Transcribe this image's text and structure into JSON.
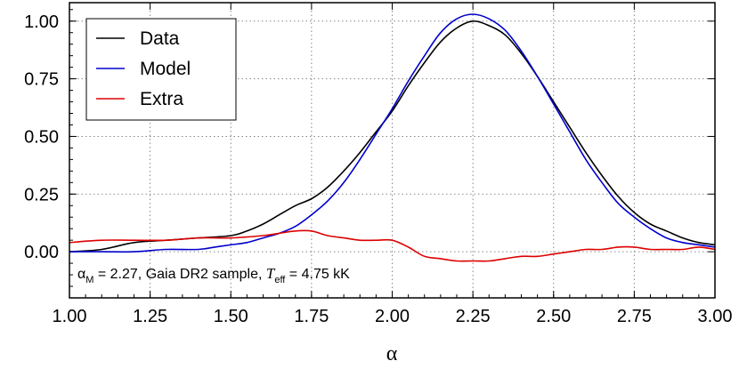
{
  "chart_data": {
    "type": "line",
    "xlabel": "α",
    "ylabel": "",
    "xlim": [
      1.0,
      3.0
    ],
    "ylim": [
      -0.2,
      1.08
    ],
    "x_ticks": [
      "1.00",
      "1.25",
      "1.50",
      "1.75",
      "2.00",
      "2.25",
      "2.50",
      "2.75",
      "3.00"
    ],
    "y_ticks": [
      "1.00",
      "0.75",
      "0.50",
      "0.25",
      "0.00"
    ],
    "grid": true,
    "legend_position": "top-left",
    "annotation": {
      "alpha": "α",
      "alpha_sub": "M",
      "value_text": " = 2.27, Gaia DR2 sample, ",
      "t": "T",
      "t_sub": "eff",
      "tail": " = 4.75 kK"
    },
    "series": [
      {
        "name": "Data",
        "color": "#000000",
        "x": [
          1.0,
          1.1,
          1.2,
          1.3,
          1.4,
          1.5,
          1.55,
          1.6,
          1.65,
          1.7,
          1.75,
          1.8,
          1.85,
          1.9,
          1.95,
          2.0,
          2.05,
          2.1,
          2.15,
          2.2,
          2.25,
          2.3,
          2.35,
          2.4,
          2.45,
          2.5,
          2.55,
          2.6,
          2.65,
          2.7,
          2.75,
          2.8,
          2.85,
          2.9,
          2.95,
          3.0
        ],
        "y": [
          0.0,
          0.01,
          0.04,
          0.05,
          0.06,
          0.07,
          0.09,
          0.12,
          0.16,
          0.2,
          0.23,
          0.28,
          0.35,
          0.43,
          0.52,
          0.61,
          0.72,
          0.82,
          0.91,
          0.97,
          1.0,
          0.98,
          0.94,
          0.86,
          0.76,
          0.65,
          0.54,
          0.43,
          0.33,
          0.24,
          0.17,
          0.12,
          0.09,
          0.06,
          0.04,
          0.03
        ]
      },
      {
        "name": "Model",
        "color": "#0000cc",
        "x": [
          1.0,
          1.1,
          1.2,
          1.3,
          1.4,
          1.45,
          1.5,
          1.55,
          1.6,
          1.65,
          1.7,
          1.75,
          1.8,
          1.85,
          1.9,
          1.95,
          2.0,
          2.05,
          2.1,
          2.15,
          2.2,
          2.25,
          2.3,
          2.35,
          2.4,
          2.45,
          2.5,
          2.55,
          2.6,
          2.65,
          2.7,
          2.75,
          2.8,
          2.85,
          2.9,
          2.95,
          3.0
        ],
        "y": [
          0.0,
          0.0,
          0.0,
          0.01,
          0.01,
          0.02,
          0.03,
          0.04,
          0.06,
          0.08,
          0.11,
          0.16,
          0.22,
          0.3,
          0.4,
          0.51,
          0.62,
          0.74,
          0.85,
          0.95,
          1.01,
          1.03,
          1.01,
          0.96,
          0.87,
          0.76,
          0.64,
          0.52,
          0.4,
          0.3,
          0.21,
          0.15,
          0.1,
          0.06,
          0.04,
          0.03,
          0.02
        ]
      },
      {
        "name": "Extra",
        "color": "#dd0000",
        "x": [
          1.0,
          1.1,
          1.2,
          1.3,
          1.4,
          1.5,
          1.6,
          1.65,
          1.7,
          1.75,
          1.8,
          1.85,
          1.9,
          1.95,
          2.0,
          2.05,
          2.1,
          2.15,
          2.2,
          2.25,
          2.3,
          2.35,
          2.4,
          2.45,
          2.5,
          2.55,
          2.6,
          2.65,
          2.7,
          2.75,
          2.8,
          2.85,
          2.9,
          2.95,
          3.0
        ],
        "y": [
          0.04,
          0.05,
          0.05,
          0.05,
          0.06,
          0.06,
          0.07,
          0.08,
          0.09,
          0.09,
          0.07,
          0.06,
          0.05,
          0.05,
          0.05,
          0.02,
          -0.02,
          -0.03,
          -0.04,
          -0.04,
          -0.04,
          -0.03,
          -0.02,
          -0.02,
          -0.01,
          0.0,
          0.01,
          0.01,
          0.02,
          0.02,
          0.01,
          0.01,
          0.01,
          0.02,
          0.01
        ]
      }
    ]
  }
}
